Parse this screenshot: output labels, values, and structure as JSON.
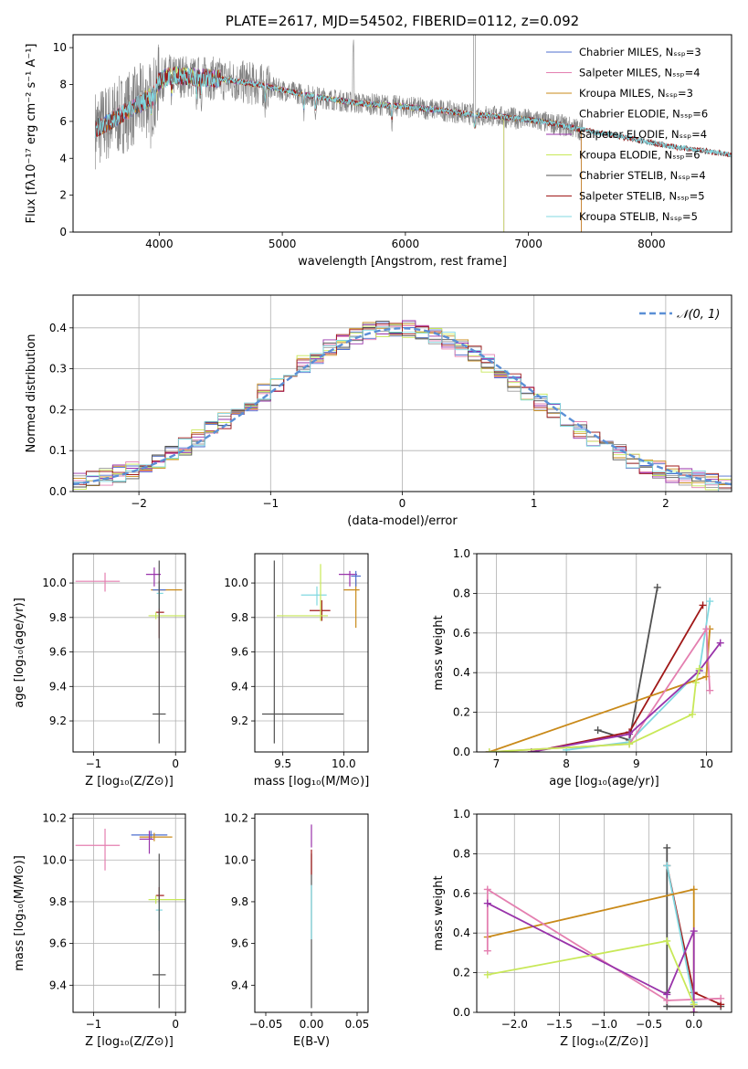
{
  "colors": {
    "chabrier_miles": "#4f6fcf",
    "salpeter_miles": "#e47fb0",
    "kroupa_miles": "#c98a1a",
    "chabrier_elodie": "#ffffff",
    "salpeter_elodie": "#9933aa",
    "kroupa_elodie": "#c8e858",
    "chabrier_stelib": "#505050",
    "salpeter_stelib": "#a01818",
    "kroupa_stelib": "#80d8e0",
    "data": "#808080",
    "normal": "#5b8fd6",
    "grid": "#b0b0b0"
  },
  "chart_data": [
    {
      "id": "spectrum",
      "type": "line",
      "title": "PLATE=2617, MJD=54502, FIBERID=0112, z=0.092",
      "xlabel": "wavelength [Angstrom, rest frame]",
      "ylabel": "Flux [fλ10⁻¹⁷ erg cm⁻² s⁻¹ A⁻¹]",
      "xlim": [
        3300,
        8650
      ],
      "ylim": [
        0,
        10.7
      ],
      "xticks": [
        4000,
        5000,
        6000,
        7000,
        8000
      ],
      "yticks": [
        0,
        2,
        4,
        6,
        8,
        10
      ],
      "grid": false,
      "legend_position": "upper-right",
      "legend": [
        "Chabrier MILES, Nₛₛₚ=3",
        "Salpeter MILES, Nₛₛₚ=4",
        "Kroupa MILES, Nₛₛₚ=3",
        "Chabrier ELODIE, Nₛₛₚ=6",
        "Salpeter ELODIE, Nₛₛₚ=4",
        "Kroupa ELODIE, Nₛₛₚ=6",
        "Chabrier STELIB, Nₛₛₚ=4",
        "Salpeter STELIB, Nₛₛₚ=5",
        "Kroupa STELIB, Nₛₛₚ=5"
      ],
      "continuum": {
        "x": [
          3480,
          3600,
          3800,
          3950,
          4000,
          4100,
          4300,
          4500,
          4800,
          5000,
          5300,
          5600,
          6000,
          6300,
          6500,
          6700,
          7000,
          7200,
          7400,
          7800,
          8200,
          8650
        ],
        "y": [
          5.6,
          6.0,
          6.8,
          7.4,
          8.2,
          8.5,
          8.4,
          8.3,
          8.0,
          7.7,
          7.3,
          7.0,
          6.8,
          6.6,
          6.4,
          6.3,
          6.1,
          5.9,
          5.6,
          5.1,
          4.6,
          4.2
        ]
      },
      "data_spectrum_range": [
        3480,
        7440
      ],
      "model_range_miles": [
        3540,
        7430
      ],
      "model_range_elodie": [
        3900,
        6800
      ],
      "model_range_stelib": [
        3480,
        8650
      ]
    },
    {
      "id": "residuals",
      "type": "line",
      "xlabel": "(data-model)/error",
      "ylabel": "Normed distribution",
      "xlim": [
        -2.5,
        2.5
      ],
      "ylim": [
        0,
        0.48
      ],
      "xticks": [
        -2,
        -1,
        0,
        1,
        2
      ],
      "yticks": [
        0.0,
        0.1,
        0.2,
        0.3,
        0.4
      ],
      "grid": true,
      "legend_position": "upper-right",
      "legend": [
        "𝒩(0, 1)"
      ],
      "bin_width": 0.1
    },
    {
      "id": "age_vs_z",
      "type": "scatter",
      "xlabel": "Z [log₁₀(Z/Z⊙)]",
      "ylabel": "age  [log₁₀(age/yr)]",
      "xlim": [
        -1.25,
        0.12
      ],
      "ylim": [
        9.02,
        10.17
      ],
      "xticks": [
        -1,
        0
      ],
      "yticks": [
        9.2,
        9.4,
        9.6,
        9.8,
        10.0
      ],
      "grid": true,
      "points": [
        {
          "model": "salpeter_miles",
          "x": -0.86,
          "y": 10.01,
          "xerr": [
            0.36,
            0.18
          ],
          "yerr": [
            0.06,
            0.05
          ]
        },
        {
          "model": "salpeter_elodie",
          "x": -0.26,
          "y": 10.05,
          "xerr": [
            0.1,
            0.08
          ],
          "yerr": [
            0.07,
            0.04
          ]
        },
        {
          "model": "kroupa_miles",
          "x": -0.2,
          "y": 9.96,
          "xerr": [
            0.1,
            0.28
          ],
          "yerr": [
            0.02,
            0.02
          ]
        },
        {
          "model": "chabrier_miles",
          "x": -0.2,
          "y": 9.96,
          "xerr": [
            0.08,
            0.08
          ],
          "yerr": [
            0.02,
            0.02
          ]
        },
        {
          "model": "salpeter_stelib",
          "x": -0.2,
          "y": 9.83,
          "xerr": [
            0.04,
            0.06
          ],
          "yerr": [
            0.15,
            0.18
          ]
        },
        {
          "model": "kroupa_elodie",
          "x": -0.24,
          "y": 9.81,
          "xerr": [
            0.09,
            0.37
          ],
          "yerr": [
            0.02,
            0.02
          ]
        },
        {
          "model": "kroupa_stelib",
          "x": -0.2,
          "y": 9.94,
          "xerr": [
            0.03,
            0.05
          ],
          "yerr": [
            0.09,
            0.06
          ]
        },
        {
          "model": "chabrier_stelib",
          "x": -0.2,
          "y": 9.24,
          "xerr": [
            0.08,
            0.08
          ],
          "yerr": [
            0.17,
            0.89
          ]
        }
      ]
    },
    {
      "id": "age_vs_mass",
      "type": "scatter",
      "xlabel": "mass [log₁₀(M/M⊙)]",
      "ylabel": "",
      "xlim": [
        9.27,
        10.2
      ],
      "ylim": [
        9.02,
        10.17
      ],
      "xticks": [
        9.5,
        10.0
      ],
      "yticks": [
        9.2,
        9.4,
        9.6,
        9.8,
        10.0
      ],
      "grid": true,
      "points": [
        {
          "model": "salpeter_elodie",
          "x": 10.05,
          "y": 10.05,
          "xerr": [
            0.09,
            0.06
          ],
          "yerr": [
            0.07,
            0.02
          ]
        },
        {
          "model": "kroupa_miles",
          "x": 10.1,
          "y": 9.96,
          "xerr": [
            0.1,
            0.03
          ],
          "yerr": [
            0.22,
            0.06
          ]
        },
        {
          "model": "chabrier_miles",
          "x": 10.1,
          "y": 10.04,
          "xerr": [
            0.04,
            0.04
          ],
          "yerr": [
            0.06,
            0.03
          ]
        },
        {
          "model": "kroupa_stelib",
          "x": 9.78,
          "y": 9.93,
          "xerr": [
            0.13,
            0.08
          ],
          "yerr": [
            0.06,
            0.05
          ]
        },
        {
          "model": "salpeter_stelib",
          "x": 9.82,
          "y": 9.84,
          "xerr": [
            0.1,
            0.07
          ],
          "yerr": [
            0.06,
            0.06
          ]
        },
        {
          "model": "kroupa_elodie",
          "x": 9.81,
          "y": 9.81,
          "xerr": [
            0.36,
            0.06
          ],
          "yerr": [
            0.03,
            0.3
          ]
        },
        {
          "model": "chabrier_stelib",
          "x": 9.43,
          "y": 9.24,
          "xerr": [
            0.1,
            0.57
          ],
          "yerr": [
            0.17,
            0.89
          ]
        }
      ]
    },
    {
      "id": "massweight_vs_age",
      "type": "line",
      "xlabel": "age  [log₁₀(age/yr)]",
      "ylabel": "mass weight",
      "xlim": [
        6.72,
        10.36
      ],
      "ylim": [
        0.0,
        1.0
      ],
      "xticks": [
        7,
        8,
        9,
        10
      ],
      "yticks": [
        0.0,
        0.2,
        0.4,
        0.6,
        0.8,
        1.0
      ],
      "grid": true,
      "series": [
        {
          "model": "chabrier_stelib",
          "x": [
            8.45,
            8.9,
            9.3
          ],
          "y": [
            0.11,
            0.06,
            0.83
          ]
        },
        {
          "model": "salpeter_stelib",
          "x": [
            7.5,
            8.9,
            9.95
          ],
          "y": [
            0.0,
            0.1,
            0.74
          ]
        },
        {
          "model": "kroupa_stelib",
          "x": [
            8.0,
            8.9,
            9.9,
            10.05
          ],
          "y": [
            0.01,
            0.05,
            0.41,
            0.76
          ]
        },
        {
          "model": "kroupa_miles",
          "x": [
            6.9,
            10.0,
            10.05
          ],
          "y": [
            0.0,
            0.38,
            0.62
          ]
        },
        {
          "model": "salpeter_miles",
          "x": [
            6.9,
            8.9,
            10.0,
            10.05
          ],
          "y": [
            0.0,
            0.04,
            0.62,
            0.31
          ]
        },
        {
          "model": "salpeter_elodie",
          "x": [
            7.5,
            8.9,
            9.9,
            10.2
          ],
          "y": [
            0.0,
            0.09,
            0.41,
            0.55
          ]
        },
        {
          "model": "kroupa_elodie",
          "x": [
            6.9,
            8.9,
            9.8,
            9.85,
            9.9
          ],
          "y": [
            0.0,
            0.04,
            0.19,
            0.35,
            0.42
          ]
        }
      ]
    },
    {
      "id": "mass_vs_z",
      "type": "scatter",
      "xlabel": "Z [log₁₀(Z/Z⊙)]",
      "ylabel": "mass [log₁₀(M/M⊙)]",
      "xlim": [
        -1.25,
        0.12
      ],
      "ylim": [
        9.27,
        10.22
      ],
      "xticks": [
        -1,
        0
      ],
      "yticks": [
        9.4,
        9.6,
        9.8,
        10.0,
        10.2
      ],
      "grid": true,
      "points": [
        {
          "model": "salpeter_miles",
          "x": -0.86,
          "y": 10.07,
          "xerr": [
            0.36,
            0.18
          ],
          "yerr": [
            0.12,
            0.08
          ]
        },
        {
          "model": "chabrier_miles",
          "x": -0.3,
          "y": 10.12,
          "xerr": [
            0.24,
            0.2
          ],
          "yerr": [
            0.02,
            0.02
          ]
        },
        {
          "model": "kroupa_miles",
          "x": -0.26,
          "y": 10.11,
          "xerr": [
            0.18,
            0.22
          ],
          "yerr": [
            0.02,
            0.02
          ]
        },
        {
          "model": "salpeter_elodie",
          "x": -0.32,
          "y": 10.1,
          "xerr": [
            0.12,
            0.05
          ],
          "yerr": [
            0.07,
            0.04
          ]
        },
        {
          "model": "salpeter_stelib",
          "x": -0.2,
          "y": 9.83,
          "xerr": [
            0.04,
            0.06
          ],
          "yerr": [
            0.04,
            0.04
          ]
        },
        {
          "model": "kroupa_elodie",
          "x": -0.24,
          "y": 9.81,
          "xerr": [
            0.09,
            0.37
          ],
          "yerr": [
            0.02,
            0.02
          ]
        },
        {
          "model": "kroupa_stelib",
          "x": -0.2,
          "y": 9.76,
          "xerr": [
            0.04,
            0.04
          ],
          "yerr": [
            0.1,
            0.04
          ]
        },
        {
          "model": "chabrier_stelib",
          "x": -0.2,
          "y": 9.45,
          "xerr": [
            0.08,
            0.08
          ],
          "yerr": [
            0.16,
            0.58
          ]
        }
      ]
    },
    {
      "id": "mass_vs_ebv",
      "type": "scatter",
      "xlabel": "E(B-V)",
      "ylabel": "",
      "xlim": [
        -0.062,
        0.062
      ],
      "ylim": [
        9.27,
        10.22
      ],
      "xticks": [
        -0.05,
        0.0,
        0.05
      ],
      "xtick_labels": [
        "−0.05",
        "0.00",
        "0.05"
      ],
      "yticks": [
        9.4,
        9.6,
        9.8,
        10.0,
        10.2
      ],
      "grid": false,
      "points": [
        {
          "model": "chabrier_stelib",
          "x": 0.0,
          "y": 9.45,
          "xerr": [
            0.0,
            0.0
          ],
          "yerr": [
            0.16,
            0.58
          ]
        },
        {
          "model": "kroupa_stelib",
          "x": 0.0,
          "y": 9.78,
          "xerr": [
            0.0,
            0.0
          ],
          "yerr": [
            0.16,
            0.1
          ]
        },
        {
          "model": "salpeter_elodie",
          "x": 0.0,
          "y": 10.1,
          "xerr": [
            0.0,
            0.0
          ],
          "yerr": [
            0.04,
            0.07
          ]
        },
        {
          "model": "salpeter_stelib",
          "x": 0.0,
          "y": 10.0,
          "xerr": [
            0.0,
            0.0
          ],
          "yerr": [
            0.07,
            0.05
          ]
        }
      ]
    },
    {
      "id": "massweight_vs_z",
      "type": "line",
      "xlabel": "Z [log₁₀(Z/Z⊙)]",
      "ylabel": "mass weight",
      "xlim": [
        -2.42,
        0.42
      ],
      "ylim": [
        0.0,
        1.0
      ],
      "xticks": [
        -2.0,
        -1.5,
        -1.0,
        -0.5,
        0.0
      ],
      "xtick_labels": [
        "−2.0",
        "−1.5",
        "−1.0",
        "−0.5",
        "0.0"
      ],
      "yticks": [
        0.0,
        0.2,
        0.4,
        0.6,
        0.8,
        1.0
      ],
      "grid": true,
      "series": [
        {
          "model": "chabrier_stelib",
          "x": [
            -0.3,
            -0.3,
            -0.3,
            0.3
          ],
          "y": [
            0.83,
            0.1,
            0.03,
            0.03
          ]
        },
        {
          "model": "salpeter_stelib",
          "x": [
            -0.3,
            0.0,
            0.3
          ],
          "y": [
            0.74,
            0.1,
            0.04
          ]
        },
        {
          "model": "kroupa_stelib",
          "x": [
            -0.3,
            0.0
          ],
          "y": [
            0.74,
            0.05
          ]
        },
        {
          "model": "kroupa_miles",
          "x": [
            -2.3,
            0.0,
            0.0
          ],
          "y": [
            0.38,
            0.62,
            0.0
          ]
        },
        {
          "model": "salpeter_miles",
          "x": [
            -2.3,
            -2.3,
            -0.3,
            0.3
          ],
          "y": [
            0.31,
            0.62,
            0.06,
            0.07
          ]
        },
        {
          "model": "salpeter_elodie",
          "x": [
            -2.3,
            -0.3,
            0.0,
            0.0
          ],
          "y": [
            0.55,
            0.09,
            0.41,
            0.0
          ]
        },
        {
          "model": "kroupa_elodie",
          "x": [
            -2.3,
            -0.3,
            0.0
          ],
          "y": [
            0.19,
            0.36,
            0.04
          ]
        }
      ]
    }
  ]
}
